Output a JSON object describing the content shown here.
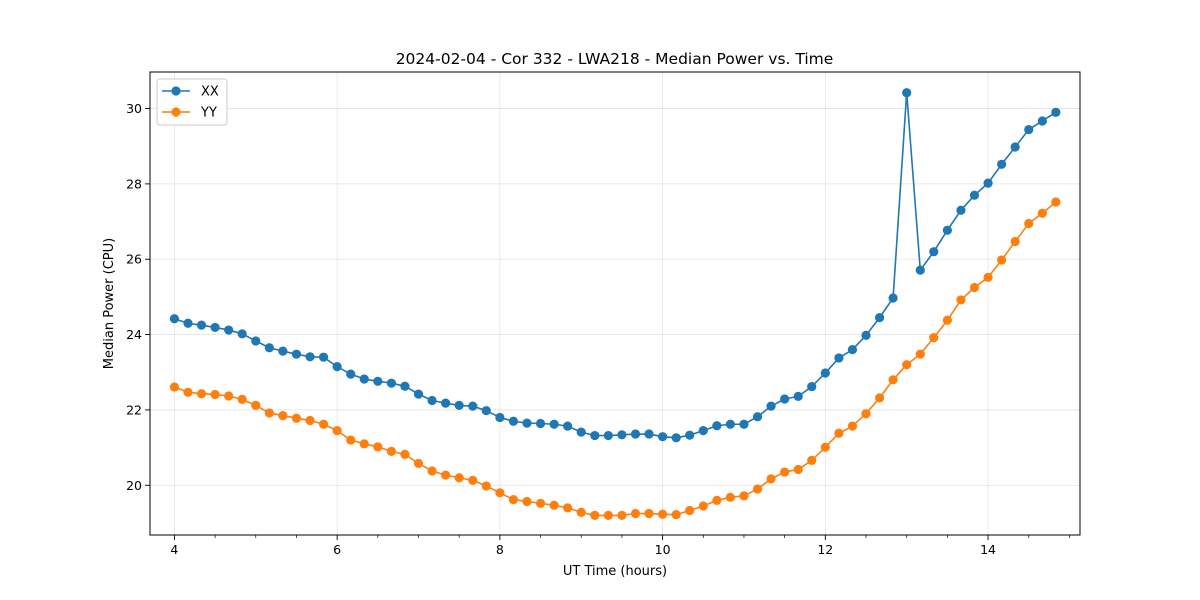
{
  "chart_data": {
    "type": "line",
    "title": "2024-02-04 - Cor 332 - LWA218 - Median Power vs. Time",
    "xlabel": "UT Time (hours)",
    "ylabel": "Median Power (CPU)",
    "xlim": [
      3.7,
      15.13
    ],
    "ylim": [
      18.68,
      30.97
    ],
    "xticks": [
      4,
      6,
      8,
      10,
      12,
      14
    ],
    "xtick_labels": [
      "4",
      "6",
      "8",
      "10",
      "12",
      "14"
    ],
    "yticks": [
      20,
      22,
      24,
      26,
      28,
      30
    ],
    "ytick_labels": [
      "20",
      "22",
      "24",
      "26",
      "28",
      "30"
    ],
    "minor_xtick_step": 0.5,
    "grid": true,
    "legend_position": "top-left",
    "x": [
      4.0,
      4.167,
      4.333,
      4.5,
      4.667,
      4.833,
      5.0,
      5.167,
      5.333,
      5.5,
      5.667,
      5.833,
      6.0,
      6.167,
      6.333,
      6.5,
      6.667,
      6.833,
      7.0,
      7.167,
      7.333,
      7.5,
      7.667,
      7.833,
      8.0,
      8.167,
      8.333,
      8.5,
      8.667,
      8.833,
      9.0,
      9.167,
      9.333,
      9.5,
      9.667,
      9.833,
      10.0,
      10.167,
      10.333,
      10.5,
      10.667,
      10.833,
      11.0,
      11.167,
      11.333,
      11.5,
      11.667,
      11.833,
      12.0,
      12.167,
      12.333,
      12.5,
      12.667,
      12.833,
      13.0,
      13.167,
      13.333,
      13.5,
      13.667,
      13.833,
      14.0,
      14.167,
      14.333,
      14.5,
      14.667,
      14.833
    ],
    "series": [
      {
        "name": "XX",
        "color": "#1f77b4",
        "values": [
          24.42,
          24.3,
          24.25,
          24.19,
          24.12,
          24.02,
          23.83,
          23.65,
          23.56,
          23.48,
          23.41,
          23.4,
          23.15,
          22.95,
          22.82,
          22.76,
          22.71,
          22.63,
          22.42,
          22.25,
          22.18,
          22.12,
          22.1,
          21.98,
          21.8,
          21.7,
          21.65,
          21.64,
          21.62,
          21.57,
          21.41,
          21.32,
          21.32,
          21.34,
          21.36,
          21.36,
          21.29,
          21.26,
          21.33,
          21.45,
          21.58,
          21.62,
          21.62,
          21.82,
          22.1,
          22.29,
          22.36,
          22.62,
          22.98,
          23.38,
          23.6,
          23.98,
          24.45,
          24.97,
          30.42,
          25.71,
          26.2,
          26.77,
          27.3,
          27.7,
          28.02,
          28.52,
          28.98,
          29.44,
          29.67,
          29.9
        ]
      },
      {
        "name": "YY",
        "color": "#ff7f0e",
        "values": [
          22.61,
          22.47,
          22.43,
          22.41,
          22.37,
          22.28,
          22.12,
          21.92,
          21.85,
          21.78,
          21.72,
          21.62,
          21.45,
          21.2,
          21.1,
          21.02,
          20.9,
          20.82,
          20.58,
          20.38,
          20.27,
          20.2,
          20.13,
          19.98,
          19.8,
          19.62,
          19.57,
          19.52,
          19.47,
          19.4,
          19.28,
          19.2,
          19.2,
          19.2,
          19.25,
          19.25,
          19.23,
          19.22,
          19.33,
          19.45,
          19.6,
          19.68,
          19.72,
          19.9,
          20.17,
          20.35,
          20.42,
          20.66,
          21.01,
          21.38,
          21.57,
          21.9,
          22.32,
          22.8,
          23.2,
          23.48,
          23.92,
          24.38,
          24.92,
          25.25,
          25.52,
          25.98,
          26.47,
          26.95,
          27.22,
          27.52
        ]
      }
    ]
  }
}
